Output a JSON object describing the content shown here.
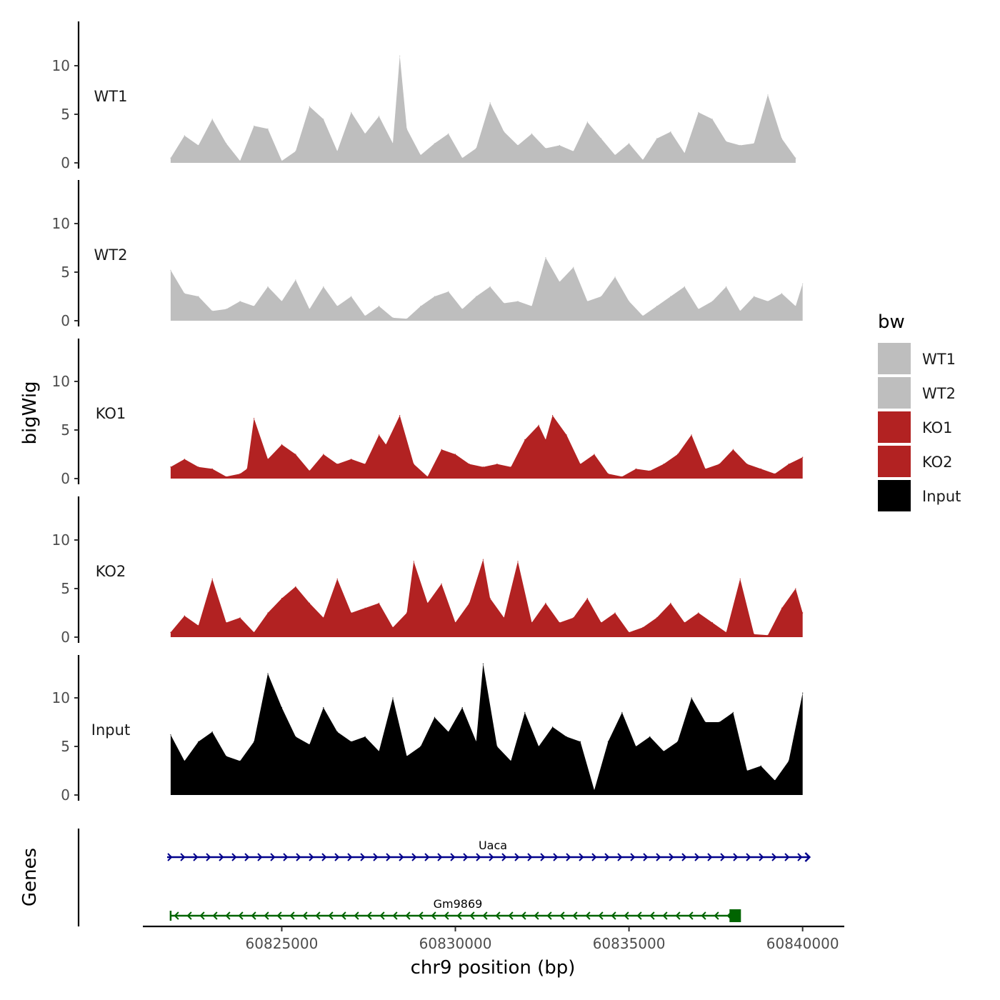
{
  "chart_data": {
    "type": "area",
    "title": "",
    "xlabel": "chr9 position (bp)",
    "ylabel": "bigWig",
    "genes_label": "Genes",
    "xlim": [
      60821000,
      60841200
    ],
    "ylim": [
      0,
      14
    ],
    "x_ticks": [
      60825000,
      60830000,
      60835000,
      60840000
    ],
    "x_tick_labels": [
      "60825000",
      "60830000",
      "60835000",
      "60840000"
    ],
    "y_ticks": [
      0,
      5,
      10
    ],
    "y_tick_labels": [
      "0",
      "5",
      "10"
    ],
    "legend_title": "bw",
    "legend_position": "right",
    "legend": [
      {
        "label": "WT1",
        "color": "#bebebe"
      },
      {
        "label": "WT2",
        "color": "#bebebe"
      },
      {
        "label": "KO1",
        "color": "#b22222"
      },
      {
        "label": "KO2",
        "color": "#b22222"
      },
      {
        "label": "Input",
        "color": "#000000"
      }
    ],
    "series": [
      {
        "name": "WT1",
        "color": "#bebebe",
        "x": [
          60821800,
          60822200,
          60822600,
          60823000,
          60823400,
          60823800,
          60824200,
          60824600,
          60825000,
          60825400,
          60825800,
          60826200,
          60826600,
          60827000,
          60827400,
          60827800,
          60828200,
          60828400,
          60828600,
          60829000,
          60829400,
          60829800,
          60830200,
          60830600,
          60831000,
          60831400,
          60831800,
          60832200,
          60832600,
          60833000,
          60833400,
          60833800,
          60834200,
          60834600,
          60835000,
          60835400,
          60835800,
          60836200,
          60836600,
          60837000,
          60837400,
          60837800,
          60838200,
          60838600,
          60839000,
          60839400,
          60839800
        ],
        "values": [
          0.5,
          2.8,
          1.8,
          4.5,
          2.0,
          0.2,
          3.8,
          3.5,
          0.2,
          1.2,
          5.8,
          4.5,
          1.2,
          5.2,
          3.0,
          4.8,
          2.0,
          11.0,
          3.5,
          0.8,
          2.0,
          3.0,
          0.5,
          1.5,
          6.2,
          3.2,
          1.8,
          3.0,
          1.5,
          1.8,
          1.2,
          4.2,
          2.5,
          0.8,
          2.0,
          0.3,
          2.5,
          3.2,
          1.0,
          5.2,
          4.5,
          2.2,
          1.8,
          2.0,
          7.0,
          2.5,
          0.5
        ]
      },
      {
        "name": "WT2",
        "color": "#bebebe",
        "x": [
          60821800,
          60822200,
          60822600,
          60823000,
          60823400,
          60823800,
          60824200,
          60824600,
          60825000,
          60825400,
          60825800,
          60826200,
          60826600,
          60827000,
          60827400,
          60827800,
          60828200,
          60828600,
          60829000,
          60829400,
          60829800,
          60830200,
          60830600,
          60831000,
          60831400,
          60831800,
          60832200,
          60832600,
          60833000,
          60833400,
          60833800,
          60834200,
          60834600,
          60835000,
          60835400,
          60835800,
          60836200,
          60836600,
          60837000,
          60837400,
          60837800,
          60838200,
          60838600,
          60839000,
          60839400,
          60839800,
          60840000
        ],
        "values": [
          5.2,
          2.8,
          2.5,
          1.0,
          1.2,
          2.0,
          1.5,
          3.5,
          2.0,
          4.2,
          1.2,
          3.5,
          1.5,
          2.5,
          0.5,
          1.5,
          0.3,
          0.2,
          1.5,
          2.5,
          3.0,
          1.2,
          2.5,
          3.5,
          1.8,
          2.0,
          1.5,
          6.5,
          4.0,
          5.5,
          2.0,
          2.5,
          4.5,
          2.0,
          0.5,
          1.5,
          2.5,
          3.5,
          1.2,
          2.0,
          3.5,
          1.0,
          2.5,
          2.0,
          2.8,
          1.5,
          3.8
        ]
      },
      {
        "name": "KO1",
        "color": "#b22222",
        "x": [
          60821800,
          60822200,
          60822600,
          60823000,
          60823400,
          60823800,
          60824000,
          60824200,
          60824600,
          60825000,
          60825400,
          60825800,
          60826200,
          60826600,
          60827000,
          60827400,
          60827800,
          60828000,
          60828400,
          60828800,
          60829200,
          60829600,
          60830000,
          60830400,
          60830800,
          60831200,
          60831600,
          60832000,
          60832400,
          60832600,
          60832800,
          60833200,
          60833600,
          60834000,
          60834400,
          60834800,
          60835200,
          60835600,
          60836000,
          60836400,
          60836800,
          60837200,
          60837600,
          60838000,
          60838400,
          60838800,
          60839200,
          60839600,
          60840000
        ],
        "values": [
          1.2,
          2.0,
          1.2,
          1.0,
          0.2,
          0.5,
          1.0,
          6.2,
          2.0,
          3.5,
          2.5,
          0.8,
          2.5,
          1.5,
          2.0,
          1.5,
          4.5,
          3.5,
          6.5,
          1.5,
          0.2,
          3.0,
          2.5,
          1.5,
          1.2,
          1.5,
          1.2,
          4.0,
          5.5,
          4.0,
          6.5,
          4.5,
          1.5,
          2.5,
          0.5,
          0.2,
          1.0,
          0.8,
          1.5,
          2.5,
          4.5,
          1.0,
          1.5,
          3.0,
          1.5,
          1.0,
          0.5,
          1.5,
          2.2
        ]
      },
      {
        "name": "KO2",
        "color": "#b22222",
        "x": [
          60821800,
          60822200,
          60822600,
          60823000,
          60823400,
          60823800,
          60824200,
          60824600,
          60825000,
          60825400,
          60825800,
          60826200,
          60826600,
          60827000,
          60827400,
          60827800,
          60828200,
          60828600,
          60828800,
          60829200,
          60829600,
          60830000,
          60830400,
          60830800,
          60831000,
          60831400,
          60831800,
          60832200,
          60832600,
          60833000,
          60833400,
          60833800,
          60834200,
          60834600,
          60835000,
          60835400,
          60835800,
          60836200,
          60836600,
          60837000,
          60837400,
          60837800,
          60838200,
          60838600,
          60839000,
          60839400,
          60839800,
          60840000
        ],
        "values": [
          0.5,
          2.2,
          1.2,
          6.0,
          1.5,
          2.0,
          0.5,
          2.5,
          4.0,
          5.2,
          3.5,
          2.0,
          6.0,
          2.5,
          3.0,
          3.5,
          1.0,
          2.5,
          7.8,
          3.5,
          5.5,
          1.5,
          3.5,
          8.0,
          4.0,
          2.0,
          7.8,
          1.5,
          3.5,
          1.5,
          2.0,
          4.0,
          1.5,
          2.5,
          0.5,
          1.0,
          2.0,
          3.5,
          1.5,
          2.5,
          1.5,
          0.5,
          6.0,
          0.3,
          0.2,
          3.0,
          5.0,
          2.5
        ]
      },
      {
        "name": "Input",
        "color": "#000000",
        "x": [
          60821800,
          60822200,
          60822600,
          60823000,
          60823400,
          60823800,
          60824200,
          60824600,
          60825000,
          60825400,
          60825800,
          60826200,
          60826600,
          60827000,
          60827400,
          60827800,
          60828200,
          60828600,
          60829000,
          60829400,
          60829800,
          60830200,
          60830600,
          60830800,
          60831200,
          60831600,
          60832000,
          60832400,
          60832800,
          60833200,
          60833600,
          60834000,
          60834400,
          60834800,
          60835200,
          60835600,
          60836000,
          60836400,
          60836800,
          60837200,
          60837600,
          60838000,
          60838400,
          60838800,
          60839200,
          60839600,
          60840000
        ],
        "values": [
          6.2,
          3.5,
          5.5,
          6.5,
          4.0,
          3.5,
          5.5,
          12.5,
          9.0,
          6.0,
          5.2,
          9.0,
          6.5,
          5.5,
          6.0,
          4.5,
          10.0,
          4.0,
          5.0,
          8.0,
          6.5,
          9.0,
          5.5,
          13.5,
          5.0,
          3.5,
          8.5,
          5.0,
          7.0,
          6.0,
          5.5,
          0.5,
          5.5,
          8.5,
          5.0,
          6.0,
          4.5,
          5.5,
          10.0,
          7.5,
          7.5,
          8.5,
          2.5,
          3.0,
          1.5,
          3.5,
          10.5
        ]
      }
    ],
    "genes": [
      {
        "name": "Uaca",
        "start": 60821700,
        "end": 60840200,
        "strand": "+",
        "color": "#00008b"
      },
      {
        "name": "Gm9869",
        "start": 60821800,
        "end": 60838100,
        "strand": "-",
        "color": "#006400"
      }
    ]
  }
}
